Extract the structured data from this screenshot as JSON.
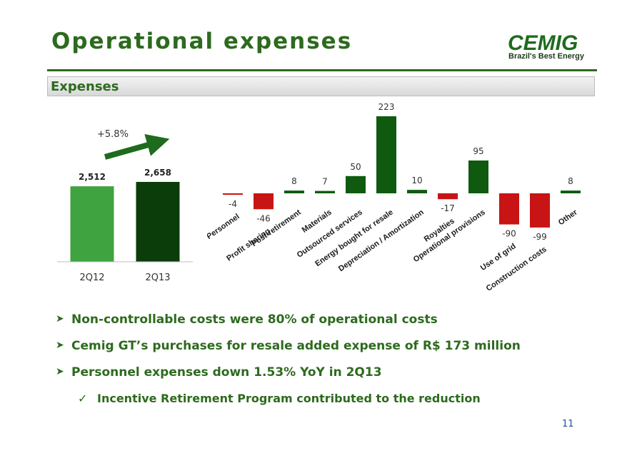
{
  "header": {
    "title": "Operational expenses",
    "section": "Expenses"
  },
  "logo": {
    "text": "CEMIG",
    "tagline": "Brazil's Best Energy"
  },
  "colors": {
    "green": "#2d6a1e",
    "positive_bar": "#0f5a0f",
    "negative_bar": "#c81414",
    "light_green_bar": "#3fa33f",
    "dark_green_bar": "#0b3d0b"
  },
  "chart_data": [
    {
      "type": "bar",
      "categories": [
        "2Q12",
        "2Q13"
      ],
      "values": [
        2512,
        2658
      ],
      "value_labels": [
        "2,512",
        "2,658"
      ],
      "annotation": "+5.8%",
      "ylim": [
        0,
        2800
      ]
    },
    {
      "type": "bar",
      "categories": [
        "Personnel",
        "Profit sharing",
        "Post-retirement",
        "Materials",
        "Outsourced services",
        "Energy bought for resale",
        "Depreciation / Amortization",
        "Royalties",
        "Operational provisions",
        "Use of grid",
        "Construction costs",
        "Other"
      ],
      "values": [
        -4,
        -46,
        8,
        7,
        50,
        223,
        10,
        -17,
        95,
        -90,
        -99,
        8
      ],
      "ylim": [
        -110,
        230
      ]
    }
  ],
  "bullets": [
    "Non-controllable costs were 80% of operational costs",
    "Cemig GT’s purchases for resale added expense of R$ 173 million",
    "Personnel expenses down 1.53% YoY in 2Q13"
  ],
  "sub_bullets": [
    "Incentive Retirement Program contributed to the reduction"
  ],
  "page_number": "11"
}
